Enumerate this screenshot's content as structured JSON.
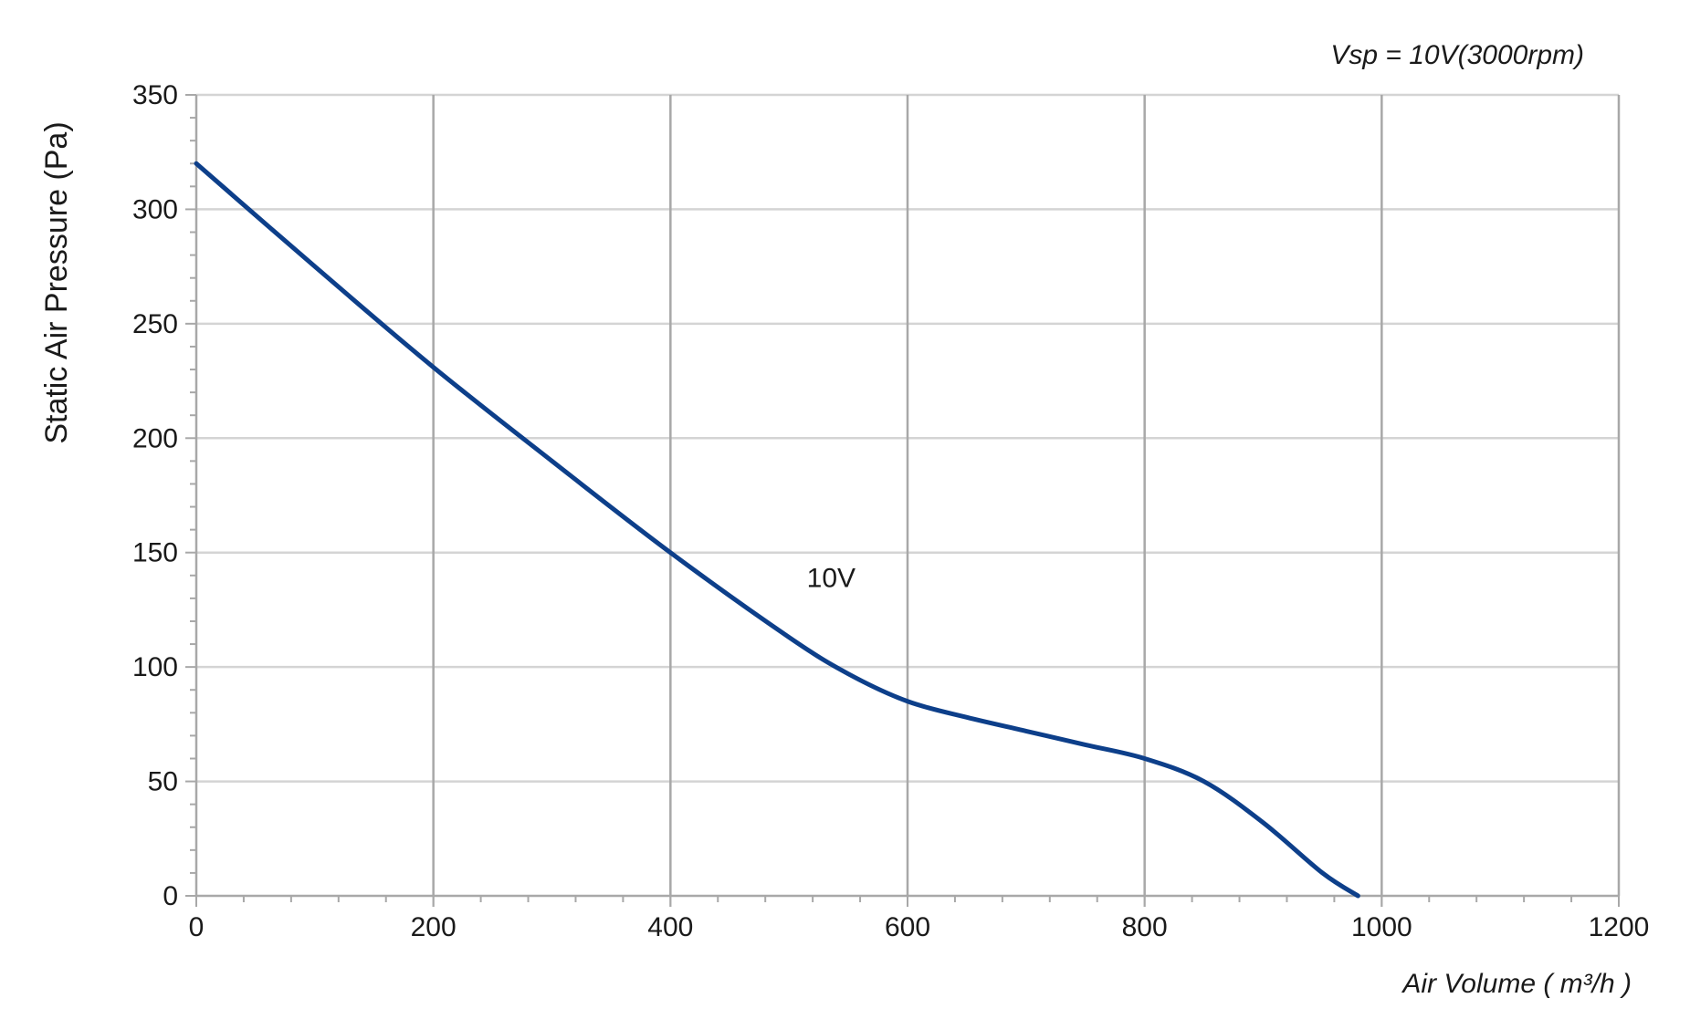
{
  "chart_data": {
    "type": "line",
    "title": "Vsp = 10V(3000rpm)",
    "xlabel": "Air Volume ( m³/h )",
    "ylabel": "Static Air Pressure  (Pa)",
    "xlim": [
      0,
      1200
    ],
    "ylim": [
      0,
      350
    ],
    "x_ticks": [
      0,
      200,
      400,
      600,
      800,
      1000,
      1200
    ],
    "y_ticks": [
      0,
      50,
      100,
      150,
      200,
      250,
      300,
      350
    ],
    "x_tick_labels": [
      "0",
      "200",
      "400",
      "600",
      "800",
      "1000",
      "1200"
    ],
    "y_tick_labels": [
      "0",
      "50",
      "100",
      "150",
      "200",
      "250",
      "300",
      "350"
    ],
    "grid": true,
    "series": [
      {
        "name": "10V",
        "color": "#0d3f8a",
        "x": [
          0,
          100,
          200,
          300,
          400,
          500,
          550,
          600,
          650,
          700,
          750,
          800,
          850,
          900,
          950,
          980
        ],
        "y": [
          320,
          275,
          231,
          190,
          150,
          113,
          97,
          85,
          78,
          72,
          66,
          60,
          50,
          32,
          10,
          0
        ]
      }
    ],
    "annotations": [
      {
        "text": "10V",
        "x": 515,
        "y": 135
      }
    ]
  }
}
